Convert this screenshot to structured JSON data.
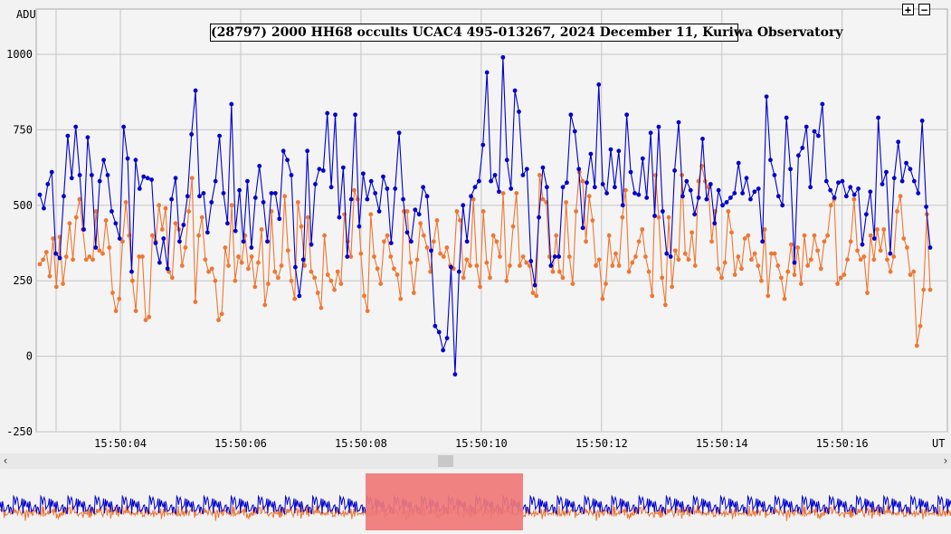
{
  "chart_data": {
    "type": "line",
    "title": "(28797) 2000 HH68 occults UCAC4 495-013267, 2024 December 11, Kuriwa Observatory",
    "ylabel": "ADU",
    "xlabel": "UT",
    "ylim": [
      -250,
      1150
    ],
    "xlim": [
      15.50026,
      15.501775
    ],
    "y_ticks": [
      -250,
      0,
      250,
      500,
      750,
      1000
    ],
    "y_tick_labels": [
      "-250",
      "0",
      "250",
      "500",
      "750",
      "1000"
    ],
    "x_ticks": [
      15.5004,
      15.5006,
      15.5008,
      15.501,
      15.5012,
      15.5014,
      15.5016
    ],
    "x_tick_labels": [
      "15:50:04",
      "15:50:06",
      "15:50:08",
      "15:50:10",
      "15:50:12",
      "15:50:14",
      "15:50:16"
    ],
    "grid": true,
    "series": [
      {
        "color": "#0000cc",
        "values": [
          535,
          490,
          570,
          610,
          340,
          325,
          530,
          730,
          590,
          760,
          600,
          420,
          725,
          600,
          360,
          580,
          650,
          600,
          480,
          440,
          390,
          760,
          655,
          280,
          650,
          555,
          595,
          590,
          585,
          375,
          310,
          390,
          290,
          520,
          590,
          380,
          435,
          530,
          735,
          880,
          530,
          540,
          410,
          510,
          580,
          730,
          540,
          440,
          835,
          415,
          550,
          380,
          580,
          360,
          525,
          630,
          510,
          380,
          540,
          540,
          455,
          680,
          650,
          600,
          295,
          200,
          320,
          680,
          370,
          570,
          620,
          615,
          805,
          560,
          800,
          460,
          625,
          330,
          520,
          800,
          430,
          605,
          520,
          580,
          540,
          480,
          595,
          555,
          375,
          555,
          740,
          520,
          410,
          380,
          485,
          470,
          560,
          530,
          350,
          100,
          80,
          20,
          60,
          295,
          -60,
          280,
          500,
          380,
          530,
          560,
          580,
          700,
          940,
          580,
          600,
          545,
          990,
          650,
          555,
          880,
          810,
          600,
          620,
          315,
          235,
          460,
          625,
          560,
          300,
          330,
          330,
          560,
          575,
          800,
          745,
          620,
          425,
          575,
          670,
          560,
          900,
          570,
          540,
          685,
          560,
          680,
          500,
          800,
          610,
          540,
          535,
          655,
          525,
          740,
          465,
          760,
          480,
          340,
          330,
          615,
          775,
          530,
          580,
          550,
          470,
          525,
          720,
          520,
          570,
          440,
          550,
          500,
          510,
          525,
          540,
          640,
          540,
          590,
          520,
          545,
          555,
          380,
          860,
          650,
          600,
          530,
          500,
          790,
          620,
          310,
          665,
          690,
          760,
          560,
          745,
          730,
          835,
          580,
          550,
          525,
          575,
          580,
          530,
          560,
          535,
          555,
          370,
          470,
          545,
          390,
          790,
          570,
          610,
          340,
          590,
          710,
          580,
          640,
          620,
          580,
          540,
          780,
          495,
          360
        ]
      },
      {
        "color": "#ee7733",
        "values": [
          305,
          320,
          345,
          265,
          390,
          230,
          395,
          240,
          330,
          440,
          320,
          460,
          520,
          420,
          320,
          330,
          320,
          480,
          350,
          340,
          450,
          360,
          210,
          150,
          190,
          380,
          510,
          400,
          250,
          150,
          330,
          330,
          120,
          130,
          400,
          380,
          500,
          420,
          490,
          280,
          260,
          440,
          420,
          300,
          360,
          480,
          590,
          180,
          400,
          460,
          320,
          280,
          290,
          250,
          120,
          140,
          360,
          300,
          500,
          250,
          330,
          310,
          400,
          290,
          330,
          230,
          310,
          420,
          170,
          240,
          480,
          280,
          260,
          300,
          530,
          350,
          250,
          190,
          510,
          430,
          300,
          460,
          280,
          260,
          210,
          160,
          400,
          270,
          250,
          220,
          280,
          240,
          470,
          380,
          330,
          550,
          520,
          340,
          200,
          150,
          470,
          330,
          290,
          240,
          380,
          400,
          330,
          290,
          270,
          190,
          480,
          480,
          310,
          210,
          320,
          440,
          400,
          360,
          280,
          380,
          450,
          340,
          330,
          360,
          300,
          290,
          480,
          450,
          260,
          320,
          300,
          520,
          300,
          230,
          480,
          310,
          260,
          400,
          380,
          330,
          540,
          250,
          300,
          430,
          540,
          300,
          330,
          310,
          300,
          210,
          200,
          600,
          520,
          510,
          330,
          280,
          400,
          280,
          260,
          510,
          330,
          240,
          480,
          610,
          580,
          380,
          530,
          450,
          300,
          320,
          190,
          240,
          400,
          300,
          340,
          300,
          460,
          550,
          280,
          310,
          330,
          380,
          420,
          330,
          280,
          200,
          600,
          460,
          260,
          170,
          460,
          230,
          350,
          320,
          600,
          340,
          320,
          410,
          300,
          580,
          630,
          580,
          560,
          380,
          480,
          290,
          260,
          310,
          480,
          410,
          270,
          330,
          290,
          390,
          400,
          320,
          340,
          300,
          250,
          420,
          200,
          340,
          340,
          300,
          260,
          190,
          280,
          370,
          270,
          360,
          240,
          400,
          300,
          320,
          400,
          350,
          290,
          380,
          400,
          500,
          520,
          240,
          260,
          270,
          320,
          380,
          520,
          350,
          320,
          330,
          210,
          400,
          320,
          420,
          350,
          420,
          320,
          280,
          330,
          480,
          530,
          390,
          360,
          270,
          280,
          35,
          100,
          220,
          470,
          220
        ]
      }
    ],
    "overview": {
      "window_start": 0.384,
      "window_end": 0.55
    }
  },
  "controls": {
    "zoom_in": "+",
    "zoom_out": "−",
    "scroll_left": "‹",
    "scroll_right": "›"
  }
}
